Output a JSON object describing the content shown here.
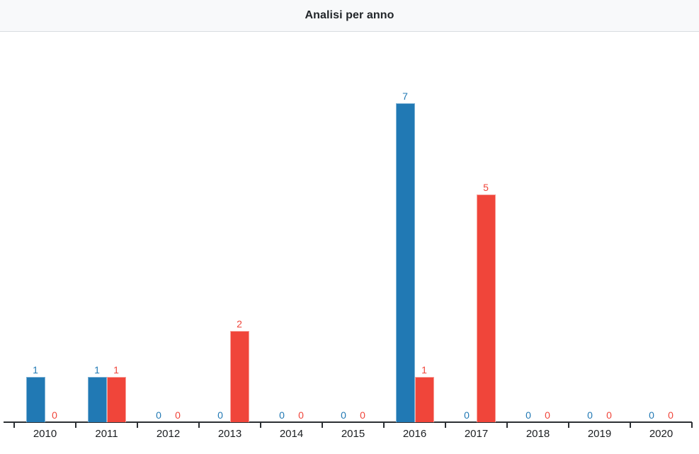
{
  "header": {
    "title": "Analisi per anno"
  },
  "chart_data": {
    "type": "bar",
    "title": "Analisi per anno",
    "categories": [
      "2010",
      "2011",
      "2012",
      "2013",
      "2014",
      "2015",
      "2016",
      "2017",
      "2018",
      "2019",
      "2020"
    ],
    "series": [
      {
        "name": "blue-series",
        "color": "#2179b4",
        "border_color": "#7fb3d6",
        "values": [
          1,
          1,
          0,
          0,
          0,
          0,
          7,
          0,
          0,
          0,
          0
        ]
      },
      {
        "name": "red-series",
        "color": "#f0453a",
        "border_color": "#f7a29b",
        "values": [
          0,
          1,
          0,
          2,
          0,
          0,
          1,
          5,
          0,
          0,
          0
        ]
      }
    ],
    "xlabel": "",
    "ylabel": "",
    "ylim": [
      0,
      8.5
    ],
    "grid": false,
    "legend": false,
    "value_labels": true,
    "axis_color": "#2b2f33",
    "tick_label_color": "#1b1e21",
    "header_bg": "#f8f9fa",
    "plot_bg": "#ffffff"
  }
}
